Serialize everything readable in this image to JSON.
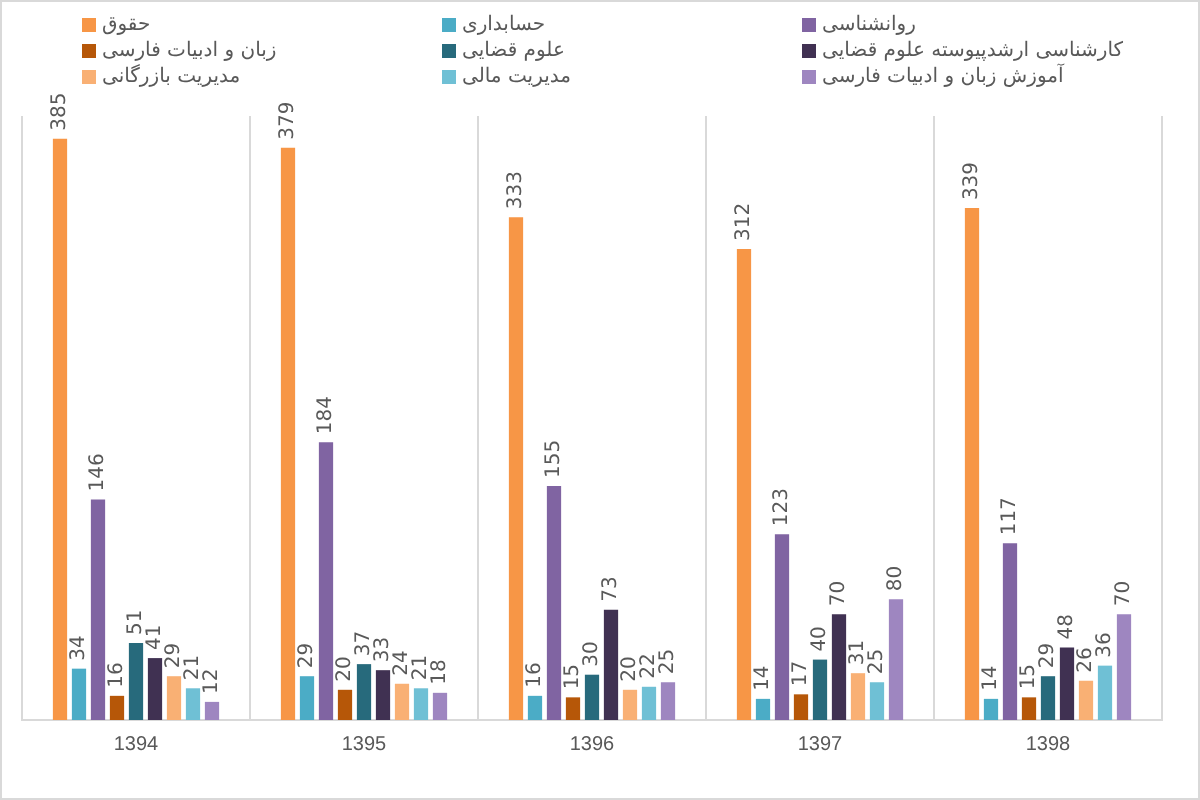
{
  "chart_data": {
    "type": "bar",
    "categories": [
      "1394",
      "1395",
      "1396",
      "1397",
      "1398"
    ],
    "series": [
      {
        "name": "حقوق",
        "color": "#f79646",
        "values": [
          385,
          379,
          333,
          312,
          339
        ]
      },
      {
        "name": "حسابداری",
        "color": "#4bacc6",
        "values": [
          34,
          29,
          16,
          14,
          14
        ]
      },
      {
        "name": "روانشناسی",
        "color": "#8064a2",
        "values": [
          146,
          184,
          155,
          123,
          117
        ]
      },
      {
        "name": "زبان و ادبیات فارسی",
        "color": "#b65708",
        "values": [
          16,
          20,
          15,
          17,
          15
        ]
      },
      {
        "name": "علوم قضایی",
        "color": "#276a7c",
        "values": [
          51,
          37,
          30,
          40,
          29
        ]
      },
      {
        "name": "کارشناسی ارشدپیوسته علوم قضایی",
        "color": "#403152",
        "values": [
          41,
          33,
          73,
          70,
          48
        ]
      },
      {
        "name": "مدیریت بازرگانی",
        "color": "#f9b074",
        "values": [
          29,
          24,
          20,
          31,
          26
        ]
      },
      {
        "name": "مدیریت مالی",
        "color": "#6fc0d5",
        "values": [
          21,
          21,
          22,
          25,
          36
        ]
      },
      {
        "name": "آموزش زبان و ادبیات فارسی",
        "color": "#9e86c0",
        "values": [
          12,
          18,
          25,
          80,
          70
        ]
      }
    ],
    "data_labels": true,
    "grid": "x",
    "legend": "top",
    "tick_labels": "x"
  }
}
